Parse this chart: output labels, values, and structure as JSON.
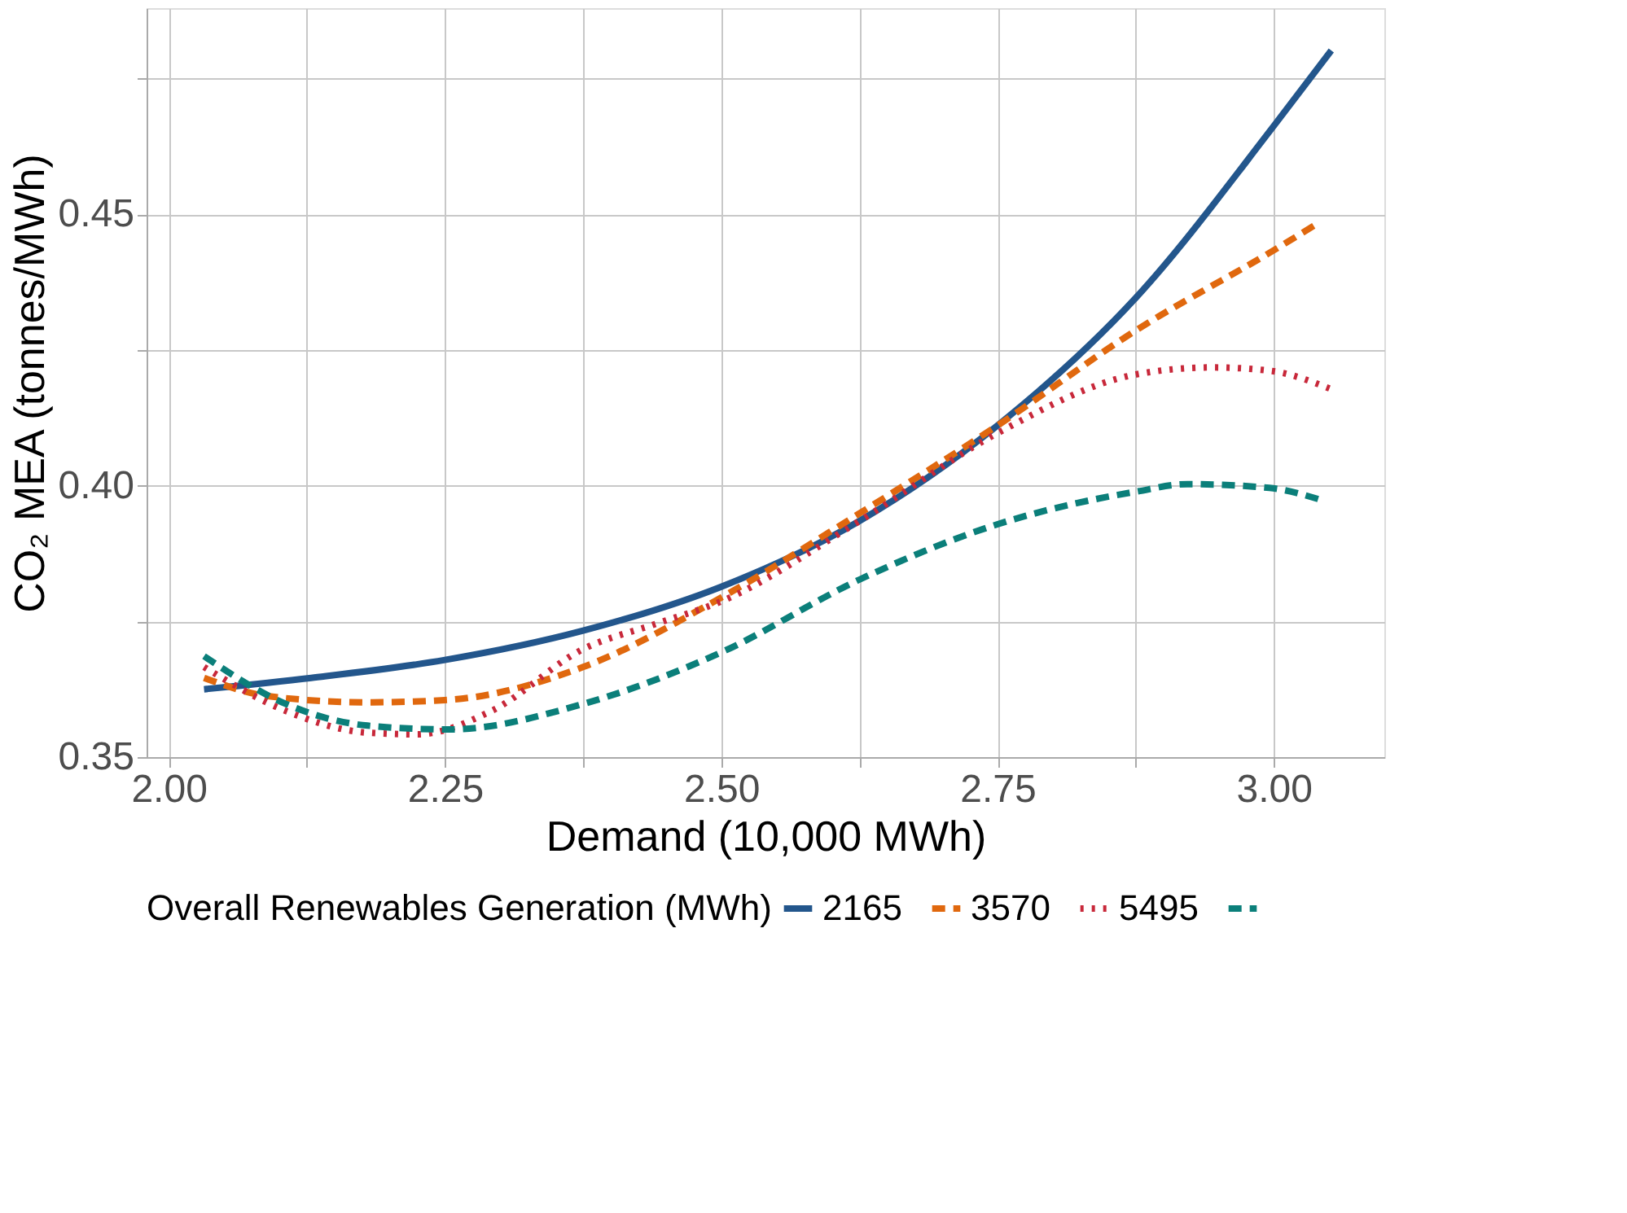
{
  "chart_data": {
    "type": "line",
    "xlabel": "Demand (10,000 MWh)",
    "ylabel": "CO₂ MEA (tonnes/MWh)",
    "legend_title": "Overall Renewables Generation (MWh)",
    "legend": "bottom",
    "grid": true,
    "xlim": [
      1.98,
      3.1
    ],
    "ylim": [
      0.35,
      0.488
    ],
    "xticks": [
      {
        "value": 2.0,
        "label": "2.00"
      },
      {
        "value": 2.125,
        "label": null
      },
      {
        "value": 2.25,
        "label": "2.25"
      },
      {
        "value": 2.375,
        "label": null
      },
      {
        "value": 2.5,
        "label": "2.50"
      },
      {
        "value": 2.625,
        "label": null
      },
      {
        "value": 2.75,
        "label": "2.75"
      },
      {
        "value": 2.875,
        "label": null
      },
      {
        "value": 3.0,
        "label": "3.00"
      }
    ],
    "yticks": [
      {
        "value": 0.35,
        "label": "0.35"
      },
      {
        "value": 0.375,
        "label": null
      },
      {
        "value": 0.4,
        "label": "0.40"
      },
      {
        "value": 0.425,
        "label": null
      },
      {
        "value": 0.45,
        "label": "0.45"
      },
      {
        "value": 0.475,
        "label": null
      }
    ],
    "series": [
      {
        "name": "2165",
        "color": "#23568c",
        "line_style": "solid",
        "x": [
          2.032,
          2.129,
          2.25,
          2.375,
          2.5,
          2.625,
          2.75,
          2.875,
          3.0,
          3.052
        ],
        "values": [
          0.3625,
          0.3646,
          0.3679,
          0.3733,
          0.3814,
          0.3935,
          0.4111,
          0.4346,
          0.4663,
          0.4802
        ]
      },
      {
        "name": "3570",
        "color": "#e0680e",
        "line_style": "dashed",
        "x": [
          2.032,
          2.091,
          2.18,
          2.25,
          2.375,
          2.5,
          2.625,
          2.75,
          2.875,
          3.0,
          3.041
        ],
        "values": [
          0.3646,
          0.3612,
          0.3601,
          0.3605,
          0.3666,
          0.3794,
          0.3949,
          0.4111,
          0.4286,
          0.4434,
          0.4485
        ]
      },
      {
        "name": "5495",
        "color": "#c8283a",
        "line_style": "dotted",
        "x": [
          2.032,
          2.106,
          2.18,
          2.225,
          2.292,
          2.375,
          2.44,
          2.5,
          2.625,
          2.75,
          2.875,
          2.944,
          2.996,
          3.052
        ],
        "values": [
          0.3666,
          0.3585,
          0.3545,
          0.3542,
          0.3585,
          0.3699,
          0.3745,
          0.3787,
          0.3935,
          0.4097,
          0.4205,
          0.4218,
          0.4212,
          0.4178
        ]
      },
      {
        "color": "#0b7f7a",
        "line_style": "dashed",
        "x": [
          2.032,
          2.106,
          2.18,
          2.254,
          2.375,
          2.5,
          2.625,
          2.75,
          2.875,
          2.922,
          2.996,
          3.044
        ],
        "values": [
          0.3686,
          0.3598,
          0.3558,
          0.3551,
          0.3598,
          0.3693,
          0.3827,
          0.3929,
          0.3989,
          0.4003,
          0.3996,
          0.3973
        ]
      }
    ]
  }
}
